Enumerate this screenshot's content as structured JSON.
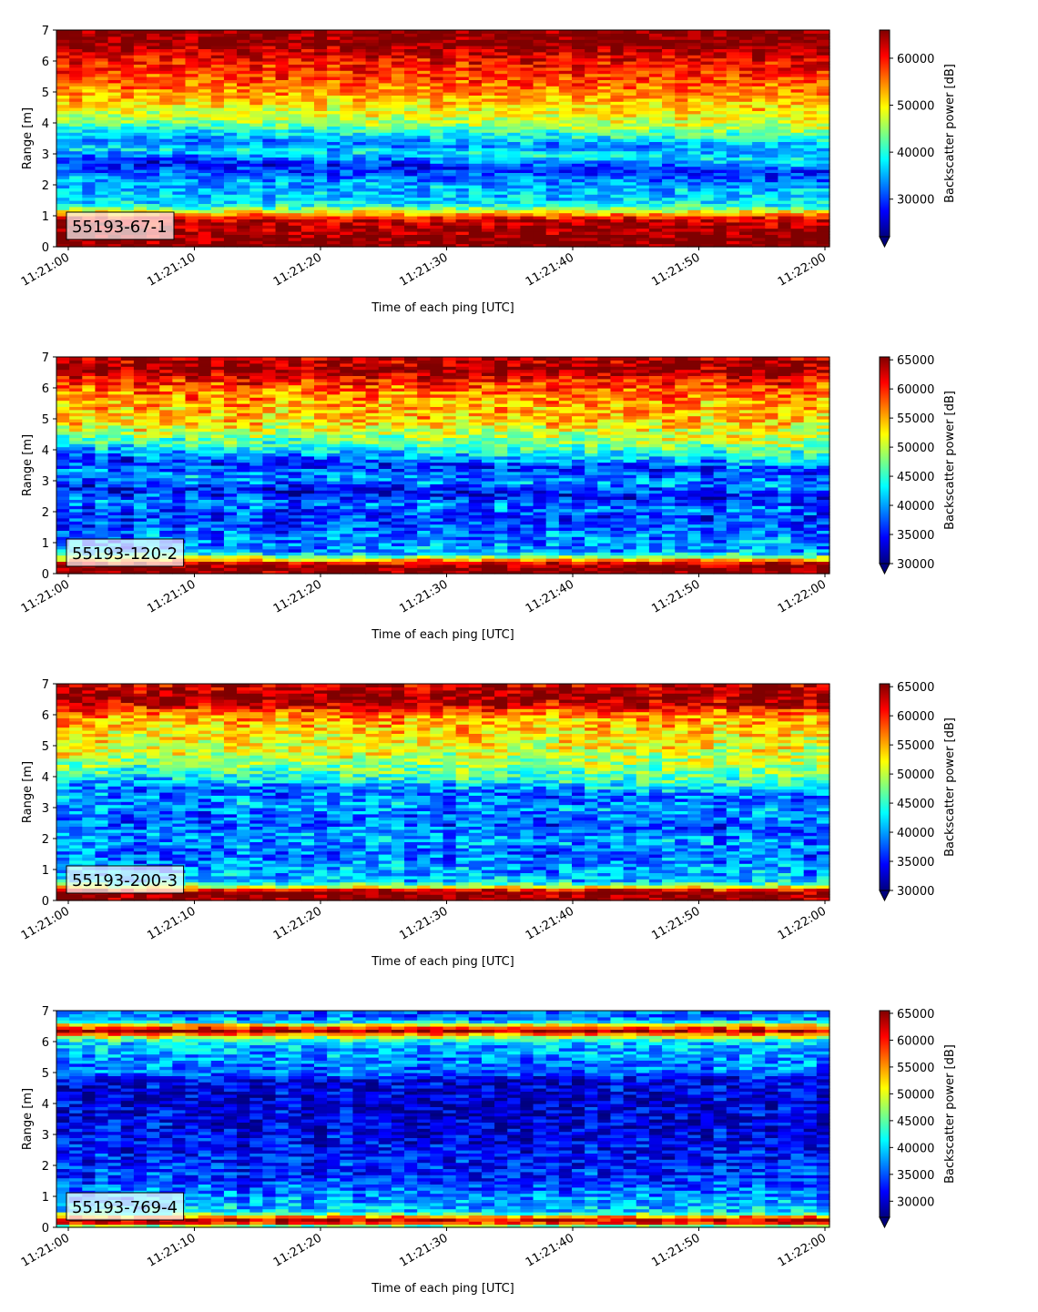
{
  "colormap": "jet",
  "colors": {
    "jet": [
      "#00007f",
      "#0000ff",
      "#007fff",
      "#00ffff",
      "#7fff7f",
      "#ffff00",
      "#ff7f00",
      "#ff0000",
      "#7f0000"
    ],
    "label_box_fill": "#ffffff"
  },
  "chart_data": [
    {
      "type": "heatmap",
      "label": "55193-67-1",
      "xlabel": "Time of each ping [UTC]",
      "ylabel": "Range [m]",
      "colorbar_label": "Backscatter power [dB]",
      "x_ticks": [
        "11:21:00",
        "11:21:10",
        "11:21:20",
        "11:21:30",
        "11:21:40",
        "11:21:50",
        "11:22:00"
      ],
      "y_ticks": [
        "0",
        "1",
        "2",
        "3",
        "4",
        "5",
        "6",
        "7"
      ],
      "ylim": [
        0,
        7
      ],
      "clim": [
        22000,
        66000
      ],
      "colorbar_ticks": [
        "30000",
        "40000",
        "50000",
        "60000"
      ],
      "colorbar_tick_values": [
        30000,
        40000,
        50000,
        60000
      ],
      "profile": [
        {
          "y": 0.0,
          "v": 66000
        },
        {
          "y": 0.25,
          "v": 66000
        },
        {
          "y": 0.5,
          "v": 65000
        },
        {
          "y": 0.9,
          "v": 62000
        },
        {
          "y": 1.1,
          "v": 52000
        },
        {
          "y": 1.3,
          "v": 40000
        },
        {
          "y": 1.6,
          "v": 36000
        },
        {
          "y": 2.0,
          "v": 35000
        },
        {
          "y": 2.3,
          "v": 31000
        },
        {
          "y": 2.6,
          "v": 28000
        },
        {
          "y": 3.0,
          "v": 38000
        },
        {
          "y": 3.3,
          "v": 33000
        },
        {
          "y": 3.6,
          "v": 38000
        },
        {
          "y": 4.0,
          "v": 46000
        },
        {
          "y": 4.5,
          "v": 50000
        },
        {
          "y": 5.0,
          "v": 54000
        },
        {
          "y": 5.5,
          "v": 58000
        },
        {
          "y": 6.0,
          "v": 60000
        },
        {
          "y": 6.3,
          "v": 63000
        },
        {
          "y": 6.6,
          "v": 66000
        },
        {
          "y": 7.0,
          "v": 66000
        }
      ]
    },
    {
      "type": "heatmap",
      "label": "55193-120-2",
      "xlabel": "Time of each ping [UTC]",
      "ylabel": "Range [m]",
      "colorbar_label": "Backscatter power [dB]",
      "x_ticks": [
        "11:21:00",
        "11:21:10",
        "11:21:20",
        "11:21:30",
        "11:21:40",
        "11:21:50",
        "11:22:00"
      ],
      "y_ticks": [
        "0",
        "1",
        "2",
        "3",
        "4",
        "5",
        "6",
        "7"
      ],
      "ylim": [
        0,
        7
      ],
      "clim": [
        30000,
        65500
      ],
      "colorbar_ticks": [
        "30000",
        "35000",
        "40000",
        "45000",
        "50000",
        "55000",
        "60000",
        "65000"
      ],
      "colorbar_tick_values": [
        30000,
        35000,
        40000,
        45000,
        50000,
        55000,
        60000,
        65000
      ],
      "profile": [
        {
          "y": 0.0,
          "v": 65500
        },
        {
          "y": 0.3,
          "v": 65500
        },
        {
          "y": 0.5,
          "v": 52000
        },
        {
          "y": 0.7,
          "v": 40000
        },
        {
          "y": 1.2,
          "v": 39000
        },
        {
          "y": 1.8,
          "v": 36000
        },
        {
          "y": 2.2,
          "v": 39000
        },
        {
          "y": 2.6,
          "v": 34000
        },
        {
          "y": 3.0,
          "v": 40000
        },
        {
          "y": 3.5,
          "v": 36000
        },
        {
          "y": 4.0,
          "v": 44000
        },
        {
          "y": 4.5,
          "v": 50000
        },
        {
          "y": 5.0,
          "v": 54000
        },
        {
          "y": 5.5,
          "v": 55000
        },
        {
          "y": 6.0,
          "v": 58000
        },
        {
          "y": 6.3,
          "v": 61000
        },
        {
          "y": 6.6,
          "v": 65500
        },
        {
          "y": 7.0,
          "v": 63000
        }
      ]
    },
    {
      "type": "heatmap",
      "label": "55193-200-3",
      "xlabel": "Time of each ping [UTC]",
      "ylabel": "Range [m]",
      "colorbar_label": "Backscatter power [dB]",
      "x_ticks": [
        "11:21:00",
        "11:21:10",
        "11:21:20",
        "11:21:30",
        "11:21:40",
        "11:21:50",
        "11:22:00"
      ],
      "y_ticks": [
        "0",
        "1",
        "2",
        "3",
        "4",
        "5",
        "6",
        "7"
      ],
      "ylim": [
        0,
        7
      ],
      "clim": [
        30000,
        65500
      ],
      "colorbar_ticks": [
        "30000",
        "35000",
        "40000",
        "45000",
        "50000",
        "55000",
        "60000",
        "65000"
      ],
      "colorbar_tick_values": [
        30000,
        35000,
        40000,
        45000,
        50000,
        55000,
        60000,
        65000
      ],
      "profile": [
        {
          "y": 0.0,
          "v": 65500
        },
        {
          "y": 0.3,
          "v": 65500
        },
        {
          "y": 0.45,
          "v": 52000
        },
        {
          "y": 0.6,
          "v": 42000
        },
        {
          "y": 1.0,
          "v": 40000
        },
        {
          "y": 1.5,
          "v": 38000
        },
        {
          "y": 2.0,
          "v": 40000
        },
        {
          "y": 2.5,
          "v": 37000
        },
        {
          "y": 3.0,
          "v": 40000
        },
        {
          "y": 3.5,
          "v": 38000
        },
        {
          "y": 4.0,
          "v": 45000
        },
        {
          "y": 4.5,
          "v": 49000
        },
        {
          "y": 5.0,
          "v": 52000
        },
        {
          "y": 5.5,
          "v": 53000
        },
        {
          "y": 6.0,
          "v": 56000
        },
        {
          "y": 6.3,
          "v": 62000
        },
        {
          "y": 6.6,
          "v": 65500
        },
        {
          "y": 7.0,
          "v": 62000
        }
      ]
    },
    {
      "type": "heatmap",
      "label": "55193-769-4",
      "xlabel": "Time of each ping [UTC]",
      "ylabel": "Range [m]",
      "colorbar_label": "Backscatter power [dB]",
      "x_ticks": [
        "11:21:00",
        "11:21:10",
        "11:21:20",
        "11:21:30",
        "11:21:40",
        "11:21:50",
        "11:22:00"
      ],
      "y_ticks": [
        "0",
        "1",
        "2",
        "3",
        "4",
        "5",
        "6",
        "7"
      ],
      "ylim": [
        0,
        7
      ],
      "clim": [
        27000,
        65500
      ],
      "colorbar_ticks": [
        "30000",
        "35000",
        "40000",
        "45000",
        "50000",
        "55000",
        "60000",
        "65000"
      ],
      "colorbar_tick_values": [
        30000,
        35000,
        40000,
        45000,
        50000,
        55000,
        60000,
        65000
      ],
      "profile": [
        {
          "y": 0.0,
          "v": 40000
        },
        {
          "y": 0.2,
          "v": 65500
        },
        {
          "y": 0.35,
          "v": 55000
        },
        {
          "y": 0.5,
          "v": 40000
        },
        {
          "y": 1.0,
          "v": 37000
        },
        {
          "y": 1.5,
          "v": 34000
        },
        {
          "y": 2.0,
          "v": 33000
        },
        {
          "y": 3.0,
          "v": 31000
        },
        {
          "y": 4.0,
          "v": 30500
        },
        {
          "y": 4.8,
          "v": 31000
        },
        {
          "y": 5.0,
          "v": 36000
        },
        {
          "y": 5.5,
          "v": 37000
        },
        {
          "y": 6.0,
          "v": 40000
        },
        {
          "y": 6.2,
          "v": 52000
        },
        {
          "y": 6.35,
          "v": 64000
        },
        {
          "y": 6.5,
          "v": 56000
        },
        {
          "y": 6.7,
          "v": 37000
        },
        {
          "y": 7.0,
          "v": 35000
        }
      ]
    }
  ]
}
